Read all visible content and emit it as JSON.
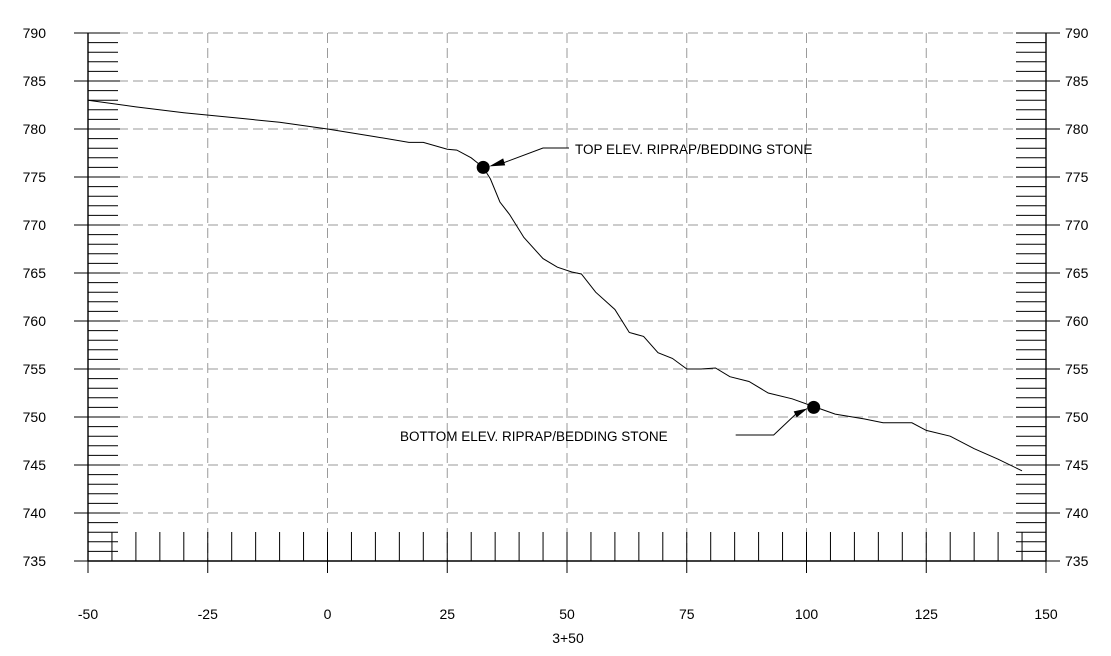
{
  "chart_data": {
    "type": "line",
    "xlabel": "3+50",
    "ylabel": "",
    "xlim": [
      -50,
      150
    ],
    "ylim": [
      735,
      790
    ],
    "grid": true,
    "x_ticks": [
      -50,
      -25,
      0,
      25,
      50,
      75,
      100,
      125,
      150
    ],
    "y_ticks": [
      735,
      740,
      745,
      750,
      755,
      760,
      765,
      770,
      775,
      780,
      785,
      790
    ],
    "x_tick_labels": [
      "-50",
      "-25",
      "0",
      "25",
      "50",
      "75",
      "100",
      "125",
      "150"
    ],
    "y_tick_labels_left": [
      "735",
      "740",
      "745",
      "750",
      "755",
      "760",
      "765",
      "770",
      "775",
      "780",
      "785",
      "790"
    ],
    "y_tick_labels_right": [
      "735",
      "740",
      "745",
      "750",
      "755",
      "760",
      "765",
      "770",
      "775",
      "780",
      "785",
      "790"
    ],
    "series": [
      {
        "x": [
          -50,
          -40,
          -30,
          -18,
          -10,
          0,
          10,
          17,
          20,
          25,
          27,
          30,
          32.5,
          34,
          36,
          38,
          41,
          45,
          48,
          51,
          53,
          56,
          60,
          63,
          66,
          69,
          72,
          75,
          78,
          81,
          84,
          88,
          92,
          97,
          102,
          106,
          112,
          116,
          118,
          122,
          125,
          130,
          135,
          140,
          145
        ],
        "y": [
          783,
          782.3,
          781.7,
          781.1,
          780.7,
          780,
          779.2,
          778.6,
          778.6,
          777.9,
          777.8,
          777.0,
          776.0,
          774.8,
          772.4,
          771.1,
          768.7,
          766.5,
          765.6,
          765.1,
          764.9,
          763.0,
          761.2,
          758.8,
          758.4,
          756.7,
          756.1,
          755.0,
          755.0,
          755.1,
          754.2,
          753.7,
          752.5,
          751.9,
          751.0,
          750.3,
          749.8,
          749.4,
          749.4,
          749.4,
          748.6,
          748.0,
          746.7,
          745.6,
          744.4
        ]
      }
    ],
    "points": [
      {
        "x": 32.5,
        "y": 776.0
      },
      {
        "x": 101.5,
        "y": 751.0
      }
    ],
    "annotations": [
      {
        "text": "TOP ELEV. RIPRAP/BEDDING STONE",
        "x": 32.5,
        "y": 776.0
      },
      {
        "text": "BOTTOM ELEV. RIPRAP/BEDDING STONE",
        "x": 101.5,
        "y": 751.0
      }
    ]
  }
}
